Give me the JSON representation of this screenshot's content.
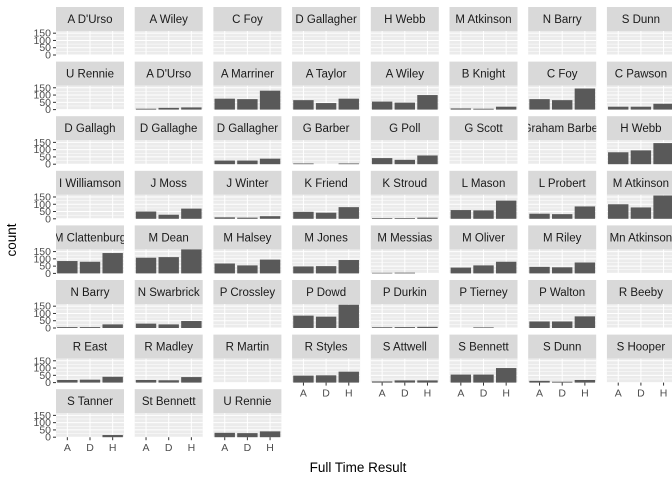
{
  "chart_data": {
    "type": "bar",
    "xlabel": "Full Time Result",
    "ylabel": "count",
    "categories": [
      "A",
      "D",
      "H"
    ],
    "y_ticks": [
      0,
      50,
      100,
      150
    ],
    "ylim": [
      0,
      165
    ],
    "facet_layout": {
      "columns": 8,
      "rows": 8
    },
    "colors": {
      "bar": "#595959",
      "panel": "#ebebeb",
      "strip": "#d9d9d9",
      "grid": "#ffffff"
    },
    "panels": [
      {
        "label": "A D'Urso",
        "values": [
          0,
          0,
          0
        ]
      },
      {
        "label": "A Wiley",
        "values": [
          0,
          0,
          0
        ]
      },
      {
        "label": "C Foy",
        "values": [
          0,
          0,
          0
        ]
      },
      {
        "label": "D Gallagher",
        "values": [
          0,
          0,
          0
        ]
      },
      {
        "label": "H Webb",
        "values": [
          0,
          0,
          0
        ]
      },
      {
        "label": "M Atkinson",
        "values": [
          0,
          0,
          0
        ]
      },
      {
        "label": "N Barry",
        "values": [
          0,
          0,
          0
        ]
      },
      {
        "label": "S Dunn",
        "values": [
          0,
          0,
          0
        ]
      },
      {
        "label": "U Rennie",
        "values": [
          0,
          0,
          0
        ]
      },
      {
        "label": "A D'Urso",
        "values": [
          6,
          12,
          15
        ]
      },
      {
        "label": "A Marriner",
        "values": [
          75,
          72,
          130
        ]
      },
      {
        "label": "A Taylor",
        "values": [
          65,
          45,
          75
        ]
      },
      {
        "label": "A Wiley",
        "values": [
          55,
          48,
          100
        ]
      },
      {
        "label": "B Knight",
        "values": [
          8,
          6,
          20
        ]
      },
      {
        "label": "C Foy",
        "values": [
          72,
          65,
          145
        ]
      },
      {
        "label": "C Pawson",
        "values": [
          20,
          20,
          40
        ]
      },
      {
        "label": "D Gallagh",
        "values": [
          0,
          0,
          0
        ]
      },
      {
        "label": "D Gallaghe",
        "values": [
          0,
          0,
          0
        ]
      },
      {
        "label": "D Gallagher",
        "values": [
          25,
          25,
          38
        ]
      },
      {
        "label": "G Barber",
        "values": [
          5,
          0,
          5
        ]
      },
      {
        "label": "G Poll",
        "values": [
          42,
          30,
          60
        ]
      },
      {
        "label": "G Scott",
        "values": [
          0,
          0,
          0
        ]
      },
      {
        "label": "Graham Barber",
        "values": [
          0,
          0,
          0
        ]
      },
      {
        "label": "H Webb",
        "values": [
          82,
          95,
          145
        ]
      },
      {
        "label": "I Williamson",
        "values": [
          0,
          0,
          0
        ]
      },
      {
        "label": "J Moss",
        "values": [
          50,
          28,
          70
        ]
      },
      {
        "label": "J Winter",
        "values": [
          10,
          8,
          18
        ]
      },
      {
        "label": "K Friend",
        "values": [
          48,
          42,
          80
        ]
      },
      {
        "label": "K Stroud",
        "values": [
          5,
          5,
          8
        ]
      },
      {
        "label": "L Mason",
        "values": [
          60,
          58,
          125
        ]
      },
      {
        "label": "L Probert",
        "values": [
          35,
          32,
          85
        ]
      },
      {
        "label": "M Atkinson",
        "values": [
          100,
          78,
          160
        ]
      },
      {
        "label": "M Clattenburg",
        "values": [
          85,
          80,
          140
        ]
      },
      {
        "label": "M Dean",
        "values": [
          108,
          112,
          170
        ]
      },
      {
        "label": "M Halsey",
        "values": [
          68,
          55,
          95
        ]
      },
      {
        "label": "M Jones",
        "values": [
          48,
          50,
          92
        ]
      },
      {
        "label": "M Messias",
        "values": [
          4,
          5,
          0
        ]
      },
      {
        "label": "M Oliver",
        "values": [
          40,
          55,
          80
        ]
      },
      {
        "label": "M Riley",
        "values": [
          45,
          42,
          75
        ]
      },
      {
        "label": "Mn Atkinson",
        "values": [
          0,
          0,
          0
        ]
      },
      {
        "label": "N Barry",
        "values": [
          6,
          6,
          25
        ]
      },
      {
        "label": "N Swarbrick",
        "values": [
          30,
          25,
          48
        ]
      },
      {
        "label": "P Crossley",
        "values": [
          0,
          0,
          0
        ]
      },
      {
        "label": "P Dowd",
        "values": [
          85,
          78,
          160
        ]
      },
      {
        "label": "P Durkin",
        "values": [
          5,
          6,
          8
        ]
      },
      {
        "label": "P Tierney",
        "values": [
          0,
          4,
          0
        ]
      },
      {
        "label": "P Walton",
        "values": [
          45,
          45,
          80
        ]
      },
      {
        "label": "R Beeby",
        "values": [
          0,
          0,
          0
        ]
      },
      {
        "label": "R East",
        "values": [
          18,
          20,
          40
        ]
      },
      {
        "label": "R Madley",
        "values": [
          18,
          16,
          38
        ]
      },
      {
        "label": "R Martin",
        "values": [
          0,
          0,
          0
        ]
      },
      {
        "label": "R Styles",
        "values": [
          48,
          50,
          75
        ]
      },
      {
        "label": "S Attwell",
        "values": [
          8,
          15,
          15
        ]
      },
      {
        "label": "S Bennett",
        "values": [
          55,
          55,
          100
        ]
      },
      {
        "label": "S Dunn",
        "values": [
          12,
          6,
          18
        ]
      },
      {
        "label": "S Hooper",
        "values": [
          0,
          0,
          0
        ]
      },
      {
        "label": "S Tanner",
        "values": [
          0,
          0,
          15
        ]
      },
      {
        "label": "St Bennett",
        "values": [
          0,
          0,
          0
        ]
      },
      {
        "label": "U Rennie",
        "values": [
          30,
          28,
          40
        ]
      }
    ]
  }
}
